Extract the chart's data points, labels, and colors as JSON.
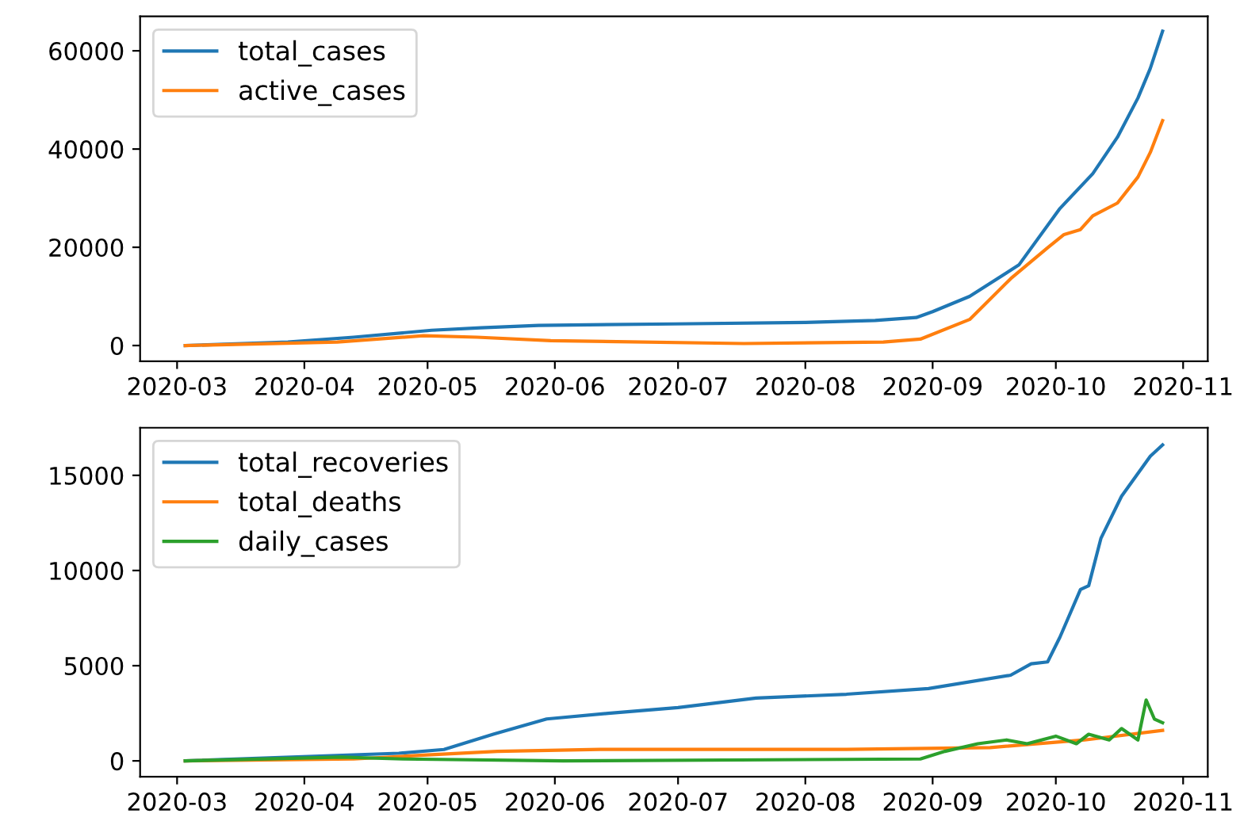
{
  "chart_data": [
    {
      "type": "line",
      "legend": "top left",
      "grid": false,
      "xlim": [
        "2020-02-21",
        "2020-11-07"
      ],
      "xticks": [
        {
          "value": "2020-03-01",
          "label": "2020-03"
        },
        {
          "value": "2020-04-01",
          "label": "2020-04"
        },
        {
          "value": "2020-05-01",
          "label": "2020-05"
        },
        {
          "value": "2020-06-01",
          "label": "2020-06"
        },
        {
          "value": "2020-07-01",
          "label": "2020-07"
        },
        {
          "value": "2020-08-01",
          "label": "2020-08"
        },
        {
          "value": "2020-09-01",
          "label": "2020-09"
        },
        {
          "value": "2020-10-01",
          "label": "2020-10"
        },
        {
          "value": "2020-11-01",
          "label": "2020-11"
        }
      ],
      "ylim": [
        -3200,
        67000
      ],
      "yticks": [
        0,
        20000,
        40000,
        60000
      ],
      "series": [
        {
          "name": "total_cases",
          "color": "#1f77b4",
          "x": [
            "2020-03-03",
            "2020-03-28",
            "2020-04-13",
            "2020-05-02",
            "2020-05-14",
            "2020-05-28",
            "2020-06-30",
            "2020-08-01",
            "2020-08-18",
            "2020-08-28",
            "2020-09-01",
            "2020-09-10",
            "2020-09-22",
            "2020-10-02",
            "2020-10-10",
            "2020-10-16",
            "2020-10-21",
            "2020-10-24",
            "2020-10-27"
          ],
          "values": [
            0,
            700,
            1700,
            3100,
            3600,
            4100,
            4400,
            4700,
            5100,
            5700,
            6900,
            10000,
            16400,
            27900,
            35000,
            42400,
            50400,
            56400,
            64000
          ]
        },
        {
          "name": "active_cases",
          "color": "#ff7f0e",
          "x": [
            "2020-03-03",
            "2020-04-09",
            "2020-04-30",
            "2020-05-13",
            "2020-05-31",
            "2020-07-17",
            "2020-08-20",
            "2020-08-29",
            "2020-09-10",
            "2020-09-20",
            "2020-09-29",
            "2020-10-03",
            "2020-10-07",
            "2020-10-10",
            "2020-10-16",
            "2020-10-21",
            "2020-10-24",
            "2020-10-27"
          ],
          "values": [
            0,
            700,
            2000,
            1700,
            1000,
            400,
            700,
            1300,
            5300,
            13600,
            19900,
            22600,
            23600,
            26400,
            29000,
            34300,
            39300,
            45800
          ]
        }
      ]
    },
    {
      "type": "line",
      "legend": "top left",
      "grid": false,
      "xlim": [
        "2020-02-21",
        "2020-11-07"
      ],
      "xticks": [
        {
          "value": "2020-03-01",
          "label": "2020-03"
        },
        {
          "value": "2020-04-01",
          "label": "2020-04"
        },
        {
          "value": "2020-05-01",
          "label": "2020-05"
        },
        {
          "value": "2020-06-01",
          "label": "2020-06"
        },
        {
          "value": "2020-07-01",
          "label": "2020-07"
        },
        {
          "value": "2020-08-01",
          "label": "2020-08"
        },
        {
          "value": "2020-09-01",
          "label": "2020-09"
        },
        {
          "value": "2020-10-01",
          "label": "2020-10"
        },
        {
          "value": "2020-11-01",
          "label": "2020-11"
        }
      ],
      "ylim": [
        -830,
        17500
      ],
      "yticks": [
        0,
        5000,
        10000,
        15000
      ],
      "series": [
        {
          "name": "total_recoveries",
          "color": "#1f77b4",
          "x": [
            "2020-03-03",
            "2020-04-24",
            "2020-05-05",
            "2020-05-17",
            "2020-05-30",
            "2020-06-14",
            "2020-07-01",
            "2020-07-20",
            "2020-08-11",
            "2020-08-31",
            "2020-09-20",
            "2020-09-25",
            "2020-09-29",
            "2020-10-02",
            "2020-10-07",
            "2020-10-09",
            "2020-10-12",
            "2020-10-17",
            "2020-10-24",
            "2020-10-27"
          ],
          "values": [
            0,
            400,
            600,
            1400,
            2200,
            2500,
            2800,
            3300,
            3500,
            3800,
            4500,
            5100,
            5200,
            6500,
            9000,
            9200,
            11700,
            13900,
            16000,
            16600
          ]
        },
        {
          "name": "total_deaths",
          "color": "#ff7f0e",
          "x": [
            "2020-03-03",
            "2020-04-13",
            "2020-04-30",
            "2020-05-18",
            "2020-06-12",
            "2020-08-11",
            "2020-09-15",
            "2020-10-08",
            "2020-10-27"
          ],
          "values": [
            0,
            100,
            300,
            500,
            600,
            600,
            700,
            1100,
            1600
          ]
        },
        {
          "name": "daily_cases",
          "color": "#2ca02c",
          "x": [
            "2020-03-03",
            "2020-04-10",
            "2020-04-25",
            "2020-06-03",
            "2020-08-29",
            "2020-09-04",
            "2020-09-12",
            "2020-09-19",
            "2020-09-24",
            "2020-10-01",
            "2020-10-06",
            "2020-10-09",
            "2020-10-14",
            "2020-10-17",
            "2020-10-21",
            "2020-10-23",
            "2020-10-25",
            "2020-10-27"
          ],
          "values": [
            0,
            200,
            100,
            0,
            100,
            500,
            900,
            1100,
            900,
            1300,
            900,
            1400,
            1100,
            1700,
            1100,
            3200,
            2200,
            2000
          ]
        }
      ]
    }
  ]
}
